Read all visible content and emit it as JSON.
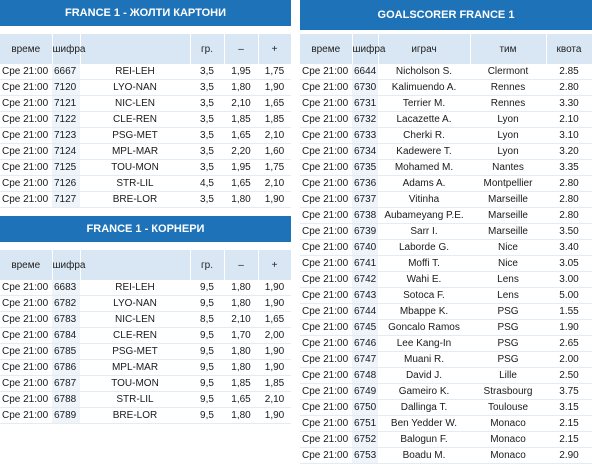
{
  "cards": {
    "title": "FRANCE 1 - ЖОЛТИ КАРТОНИ",
    "headers": [
      "време",
      "шифра",
      "",
      "гр.",
      "–",
      "+"
    ],
    "rows": [
      [
        "Сре 21:00",
        "6667",
        "REI-LEH",
        "3,5",
        "1,95",
        "1,75"
      ],
      [
        "Сре 21:00",
        "7120",
        "LYO-NAN",
        "3,5",
        "1,80",
        "1,90"
      ],
      [
        "Сре 21:00",
        "7121",
        "NIC-LEN",
        "3,5",
        "2,10",
        "1,65"
      ],
      [
        "Сре 21:00",
        "7122",
        "CLE-REN",
        "3,5",
        "1,85",
        "1,85"
      ],
      [
        "Сре 21:00",
        "7123",
        "PSG-MET",
        "3,5",
        "1,65",
        "2,10"
      ],
      [
        "Сре 21:00",
        "7124",
        "MPL-MAR",
        "3,5",
        "2,20",
        "1,60"
      ],
      [
        "Сре 21:00",
        "7125",
        "TOU-MON",
        "3,5",
        "1,95",
        "1,75"
      ],
      [
        "Сре 21:00",
        "7126",
        "STR-LIL",
        "4,5",
        "1,65",
        "2,10"
      ],
      [
        "Сре 21:00",
        "7127",
        "BRE-LOR",
        "3,5",
        "1,80",
        "1,90"
      ]
    ]
  },
  "corners": {
    "title": "FRANCE 1 - КОРНЕРИ",
    "headers": [
      "време",
      "шифра",
      "",
      "гр.",
      "–",
      "+"
    ],
    "rows": [
      [
        "Сре 21:00",
        "6683",
        "REI-LEH",
        "9,5",
        "1,80",
        "1,90"
      ],
      [
        "Сре 21:00",
        "6782",
        "LYO-NAN",
        "9,5",
        "1,80",
        "1,90"
      ],
      [
        "Сре 21:00",
        "6783",
        "NIC-LEN",
        "8,5",
        "2,10",
        "1,65"
      ],
      [
        "Сре 21:00",
        "6784",
        "CLE-REN",
        "9,5",
        "1,70",
        "2,00"
      ],
      [
        "Сре 21:00",
        "6785",
        "PSG-MET",
        "9,5",
        "1,80",
        "1,90"
      ],
      [
        "Сре 21:00",
        "6786",
        "MPL-MAR",
        "9,5",
        "1,80",
        "1,90"
      ],
      [
        "Сре 21:00",
        "6787",
        "TOU-MON",
        "9,5",
        "1,85",
        "1,85"
      ],
      [
        "Сре 21:00",
        "6788",
        "STR-LIL",
        "9,5",
        "1,65",
        "2,10"
      ],
      [
        "Сре 21:00",
        "6789",
        "BRE-LOR",
        "9,5",
        "1,80",
        "1,90"
      ]
    ]
  },
  "scorers": {
    "title": "GOALSCORER FRANCE 1",
    "headers": [
      "време",
      "шифра",
      "играч",
      "тим",
      "квота"
    ],
    "rows": [
      [
        "Сре 21:00",
        "6644",
        "Nicholson S.",
        "Clermont",
        "2.85"
      ],
      [
        "Сре 21:00",
        "6730",
        "Kalimuendo A.",
        "Rennes",
        "2.80"
      ],
      [
        "Сре 21:00",
        "6731",
        "Terrier M.",
        "Rennes",
        "3.30"
      ],
      [
        "Сре 21:00",
        "6732",
        "Lacazette A.",
        "Lyon",
        "2.10"
      ],
      [
        "Сре 21:00",
        "6733",
        "Cherki R.",
        "Lyon",
        "3.10"
      ],
      [
        "Сре 21:00",
        "6734",
        "Kadewere T.",
        "Lyon",
        "3.20"
      ],
      [
        "Сре 21:00",
        "6735",
        "Mohamed M.",
        "Nantes",
        "3.35"
      ],
      [
        "Сре 21:00",
        "6736",
        "Adams A.",
        "Montpellier",
        "2.80"
      ],
      [
        "Сре 21:00",
        "6737",
        "Vitinha",
        "Marseille",
        "2.80"
      ],
      [
        "Сре 21:00",
        "6738",
        "Aubameyang P.E.",
        "Marseille",
        "2.80"
      ],
      [
        "Сре 21:00",
        "6739",
        "Sarr I.",
        "Marseille",
        "3.50"
      ],
      [
        "Сре 21:00",
        "6740",
        "Laborde G.",
        "Nice",
        "3.40"
      ],
      [
        "Сре 21:00",
        "6741",
        "Moffi T.",
        "Nice",
        "3.05"
      ],
      [
        "Сре 21:00",
        "6742",
        "Wahi E.",
        "Lens",
        "3.00"
      ],
      [
        "Сре 21:00",
        "6743",
        "Sotoca F.",
        "Lens",
        "5.00"
      ],
      [
        "Сре 21:00",
        "6744",
        "Mbappe K.",
        "PSG",
        "1.55"
      ],
      [
        "Сре 21:00",
        "6745",
        "Goncalo Ramos",
        "PSG",
        "1.90"
      ],
      [
        "Сре 21:00",
        "6746",
        "Lee Kang-In",
        "PSG",
        "2.65"
      ],
      [
        "Сре 21:00",
        "6747",
        "Muani R.",
        "PSG",
        "2.00"
      ],
      [
        "Сре 21:00",
        "6748",
        "David J.",
        "Lille",
        "2.50"
      ],
      [
        "Сре 21:00",
        "6749",
        "Gameiro K.",
        "Strasbourg",
        "3.75"
      ],
      [
        "Сре 21:00",
        "6750",
        "Dallinga T.",
        "Toulouse",
        "3.15"
      ],
      [
        "Сре 21:00",
        "6751",
        "Ben Yedder W.",
        "Monaco",
        "2.15"
      ],
      [
        "Сре 21:00",
        "6752",
        "Balogun F.",
        "Monaco",
        "2.15"
      ],
      [
        "Сре 21:00",
        "6753",
        "Boadu M.",
        "Monaco",
        "2.90"
      ]
    ]
  }
}
